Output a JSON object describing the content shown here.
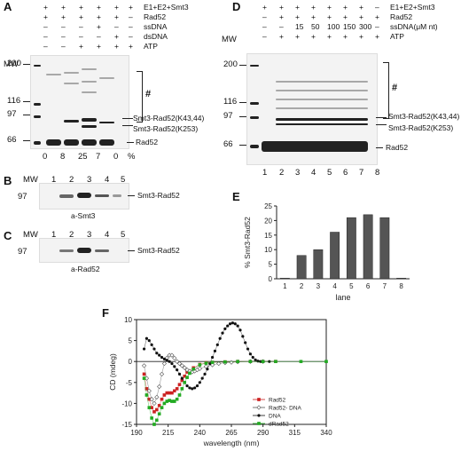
{
  "panels": {
    "A": {
      "letter": "A",
      "header_rows": [
        {
          "marks": [
            "+",
            "+",
            "+",
            "+",
            "+",
            "+"
          ],
          "label": "E1+E2+Smt3"
        },
        {
          "marks": [
            "+",
            "+",
            "+",
            "+",
            "+",
            "–"
          ],
          "label": "Rad52"
        },
        {
          "marks": [
            "–",
            "–",
            "–",
            "+",
            "–",
            "–"
          ],
          "label": "ssDNA"
        },
        {
          "marks": [
            "–",
            "–",
            "–",
            "–",
            "+",
            "–"
          ],
          "label": "dsDNA"
        },
        {
          "marks": [
            "–",
            "–",
            "+",
            "+",
            "+",
            "+"
          ],
          "label": "ATP"
        }
      ],
      "mw_label": "MW",
      "markers": [
        "200",
        "116",
        "97",
        "66"
      ],
      "lane_values": [
        "0",
        "8",
        "25",
        "7",
        "0",
        "%"
      ],
      "annotations": [
        "#",
        "Smt3-Rad52(K43,44)",
        "Smt3-Rad52(K253)",
        "Rad52"
      ]
    },
    "B": {
      "letter": "B",
      "mw_label": "MW",
      "lanes": [
        "1",
        "2",
        "3",
        "4",
        "5"
      ],
      "marker": "97",
      "band_label": "Smt3-Rad52",
      "antibody": "a-Smt3"
    },
    "C": {
      "letter": "C",
      "mw_label": "MW",
      "lanes": [
        "1",
        "2",
        "3",
        "4",
        "5"
      ],
      "marker": "97",
      "band_label": "Smt3-Rad52",
      "antibody": "a-Rad52"
    },
    "D": {
      "letter": "D",
      "header_rows": [
        {
          "marks": [
            "+",
            "+",
            "+",
            "+",
            "+",
            "+",
            "+",
            "–"
          ],
          "label": "E1+E2+Smt3"
        },
        {
          "marks": [
            "–",
            "+",
            "+",
            "+",
            "+",
            "+",
            "+",
            "+"
          ],
          "label": "Rad52"
        },
        {
          "marks": [
            "–",
            "–",
            "15",
            "50",
            "100",
            "150",
            "300",
            "–"
          ],
          "label": "ssDNA(μM nt)"
        },
        {
          "marks": [
            "–",
            "+",
            "+",
            "+",
            "+",
            "+",
            "+",
            "+"
          ],
          "label": "ATP"
        }
      ],
      "mw_label": "MW",
      "markers": [
        "200",
        "116",
        "97",
        "66"
      ],
      "lanes": [
        "1",
        "2",
        "3",
        "4",
        "5",
        "6",
        "7",
        "8"
      ],
      "annotations": [
        "#",
        "Smt3-Rad52(K43,44)",
        "Smt3-Rad52(K253)",
        "Rad52"
      ]
    },
    "E": {
      "letter": "E"
    },
    "F": {
      "letter": "F"
    }
  },
  "chart_data": [
    {
      "type": "bar",
      "panel": "E",
      "categories": [
        "1",
        "2",
        "3",
        "4",
        "5",
        "6",
        "7",
        "8"
      ],
      "values": [
        0.2,
        8,
        10,
        16,
        21,
        22,
        21,
        0.2
      ],
      "xlabel": "lane",
      "ylabel": "% Smt3-Rad52",
      "ylim": [
        0,
        25
      ],
      "yticks": [
        "0",
        "5",
        "10",
        "15",
        "20",
        "25"
      ],
      "grid": false,
      "bar_color": "#555555"
    },
    {
      "type": "scatter",
      "panel": "F",
      "xlabel": "wavelength (nm)",
      "ylabel": "CD (mdeg)",
      "xlim": [
        190,
        340
      ],
      "ylim": [
        -15,
        10
      ],
      "xticks": [
        "190",
        "215",
        "240",
        "265",
        "290",
        "315",
        "340"
      ],
      "yticks": [
        "-15",
        "-10",
        "-5",
        "0",
        "5",
        "10"
      ],
      "legend_position": "lower-right",
      "series": [
        {
          "name": "Rad52",
          "color": "#cc2222",
          "marker": "square",
          "x": [
            196,
            198,
            200,
            202,
            204,
            206,
            208,
            210,
            212,
            214,
            216,
            218,
            220,
            222,
            224,
            226,
            228,
            230,
            235,
            240,
            245,
            250,
            260,
            270,
            280,
            290,
            300
          ],
          "y": [
            -3,
            -6.5,
            -9,
            -11,
            -12,
            -11.5,
            -10.5,
            -9,
            -8,
            -7.5,
            -7.5,
            -7.5,
            -7,
            -6.5,
            -5.5,
            -4.5,
            -3.5,
            -2.5,
            -1.5,
            -0.7,
            -0.3,
            -0.2,
            -0.1,
            0,
            0,
            0,
            0
          ]
        },
        {
          "name": "Rad52- DNA",
          "color": "#555555",
          "marker": "diamond-open",
          "x": [
            196,
            198,
            200,
            202,
            204,
            206,
            208,
            210,
            212,
            214,
            216,
            218,
            220,
            222,
            224,
            226,
            228,
            230,
            232,
            234,
            236,
            238,
            240,
            245,
            250,
            255,
            260,
            265,
            270,
            280,
            290
          ],
          "y": [
            -1,
            -4,
            -7,
            -9,
            -10,
            -8.5,
            -6,
            -3,
            -0.5,
            0.8,
            1.5,
            1.5,
            0.8,
            0,
            -0.5,
            -1,
            -1.5,
            -2,
            -2.3,
            -2.5,
            -2.3,
            -2,
            -1.7,
            -1.2,
            -0.8,
            -0.5,
            -0.3,
            -0.2,
            -0.1,
            0,
            0
          ]
        },
        {
          "name": "DNA",
          "color": "#111111",
          "marker": "circle",
          "x": [
            196,
            198,
            200,
            202,
            204,
            206,
            208,
            210,
            212,
            214,
            216,
            218,
            220,
            222,
            224,
            226,
            228,
            230,
            232,
            234,
            236,
            238,
            240,
            242,
            244,
            246,
            248,
            250,
            252,
            254,
            256,
            258,
            260,
            262,
            264,
            266,
            268,
            270,
            272,
            274,
            276,
            278,
            280,
            282,
            284,
            286,
            288,
            290,
            295,
            300
          ],
          "y": [
            3,
            5.5,
            5,
            4,
            3,
            2,
            1.5,
            1,
            0.6,
            0.3,
            0,
            -0.5,
            -1.2,
            -2,
            -3,
            -4,
            -5,
            -5.8,
            -6.3,
            -6.5,
            -6.3,
            -5.8,
            -5,
            -4,
            -3,
            -1.8,
            -0.5,
            1,
            2.5,
            4,
            5.5,
            6.8,
            7.8,
            8.5,
            9,
            9.2,
            9,
            8.5,
            7.5,
            6,
            4.5,
            3,
            1.8,
            1,
            0.4,
            0.1,
            0,
            0,
            0,
            0
          ]
        },
        {
          "name": "dRad52",
          "color": "#22aa22",
          "marker": "square",
          "x": [
            196,
            198,
            200,
            202,
            204,
            206,
            208,
            210,
            212,
            214,
            216,
            218,
            220,
            222,
            224,
            226,
            228,
            230,
            232,
            235,
            240,
            245,
            250,
            260,
            270,
            280,
            290,
            300,
            320,
            340
          ],
          "y": [
            -4,
            -8,
            -11,
            -13.5,
            -15,
            -14,
            -12.5,
            -11,
            -10,
            -9.5,
            -9.3,
            -9.5,
            -9.5,
            -9,
            -8,
            -6.5,
            -5,
            -3.8,
            -2.8,
            -1.8,
            -0.8,
            -0.4,
            -0.2,
            -0.1,
            0,
            0,
            0,
            0,
            0,
            0
          ]
        }
      ]
    }
  ]
}
